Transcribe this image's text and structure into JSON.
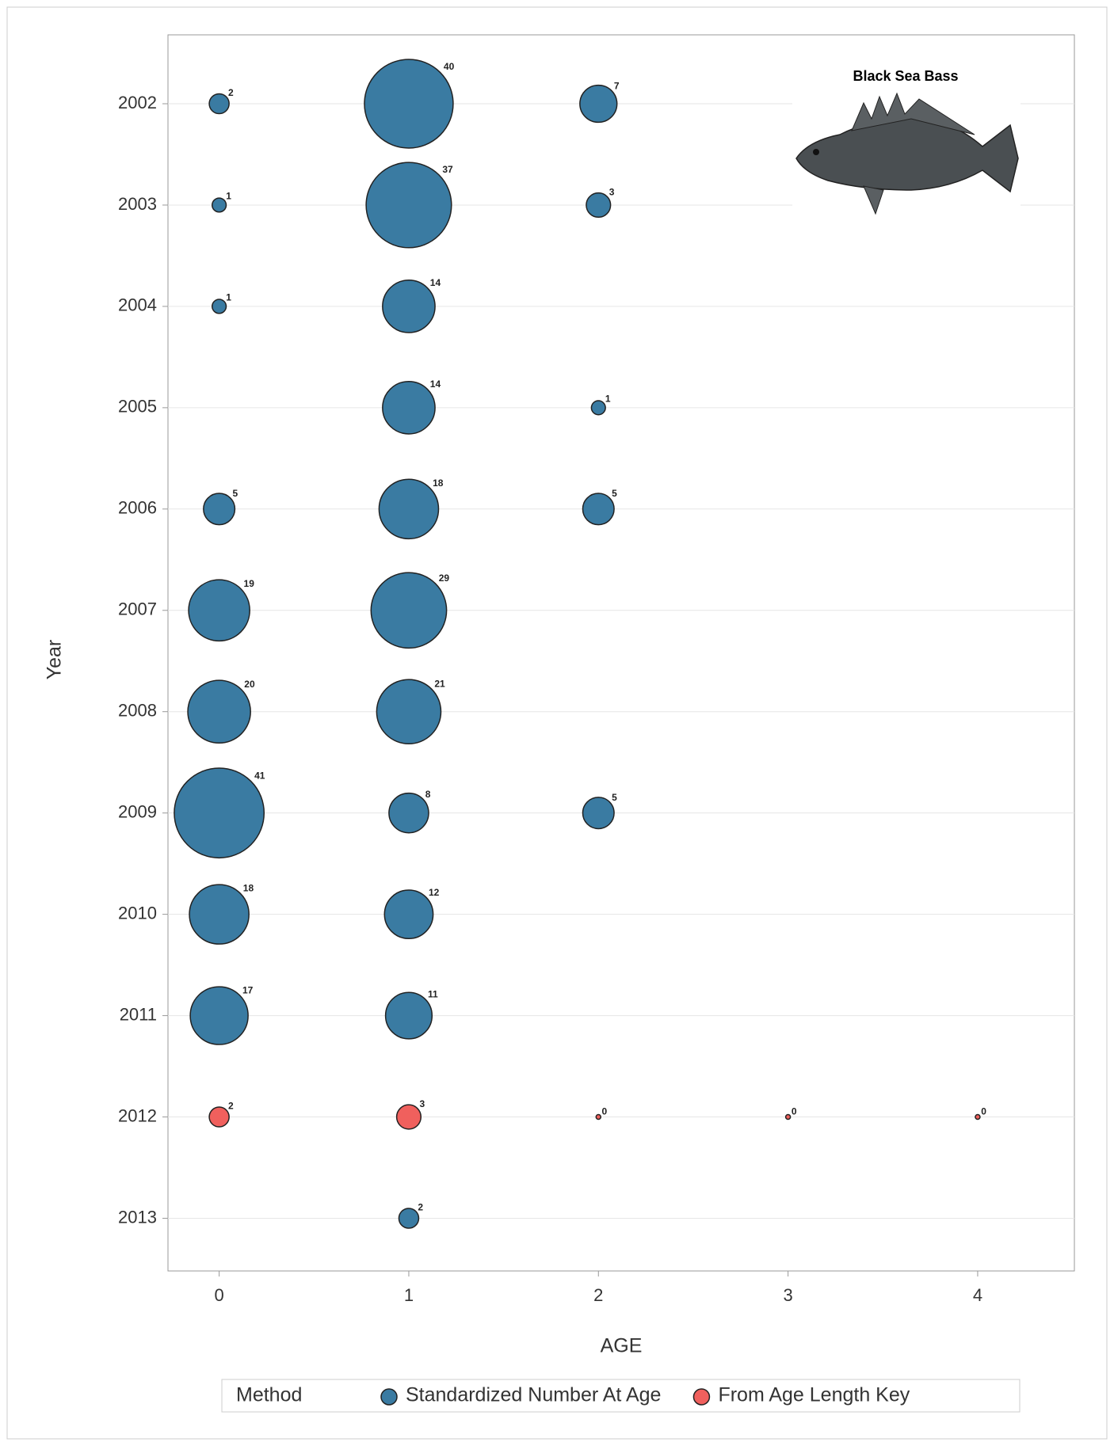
{
  "chart_data": {
    "type": "bubble",
    "x_label": "AGE",
    "y_label": "Year",
    "annotation": "Black Sea Bass",
    "legend_title": "Method",
    "legend_position": "bottom",
    "grid": true,
    "y_reverse": true,
    "xlim": [
      -0.27,
      4.51
    ],
    "xticks": [
      0,
      1,
      2,
      3,
      4
    ],
    "ylim": [
      2001.32,
      2013.52
    ],
    "yticks": [
      2002,
      2003,
      2004,
      2005,
      2006,
      2007,
      2008,
      2009,
      2010,
      2011,
      2012,
      2013
    ],
    "series": [
      {
        "name": "Standardized Number At Age",
        "color": "#3a7ba2",
        "x": [
          0,
          1,
          2,
          0,
          1,
          2,
          0,
          1,
          1,
          2,
          0,
          1,
          2,
          0,
          1,
          0,
          1,
          0,
          1,
          2,
          0,
          1,
          0,
          1,
          1
        ],
        "y": [
          2002,
          2002,
          2002,
          2003,
          2003,
          2003,
          2004,
          2004,
          2005,
          2005,
          2006,
          2006,
          2006,
          2007,
          2007,
          2008,
          2008,
          2009,
          2009,
          2009,
          2010,
          2010,
          2011,
          2011,
          2013
        ],
        "sizes": [
          2,
          40,
          7,
          1,
          37,
          3,
          1,
          14,
          14,
          1,
          5,
          18,
          5,
          19,
          29,
          20,
          21,
          41,
          8,
          5,
          18,
          12,
          17,
          11,
          2
        ]
      },
      {
        "name": "From Age Length Key",
        "color": "#f0605d",
        "x": [
          0,
          1,
          2,
          3,
          4
        ],
        "y": [
          2012,
          2012,
          2012,
          2012,
          2012
        ],
        "sizes": [
          2,
          3,
          0,
          0,
          0
        ]
      }
    ]
  }
}
